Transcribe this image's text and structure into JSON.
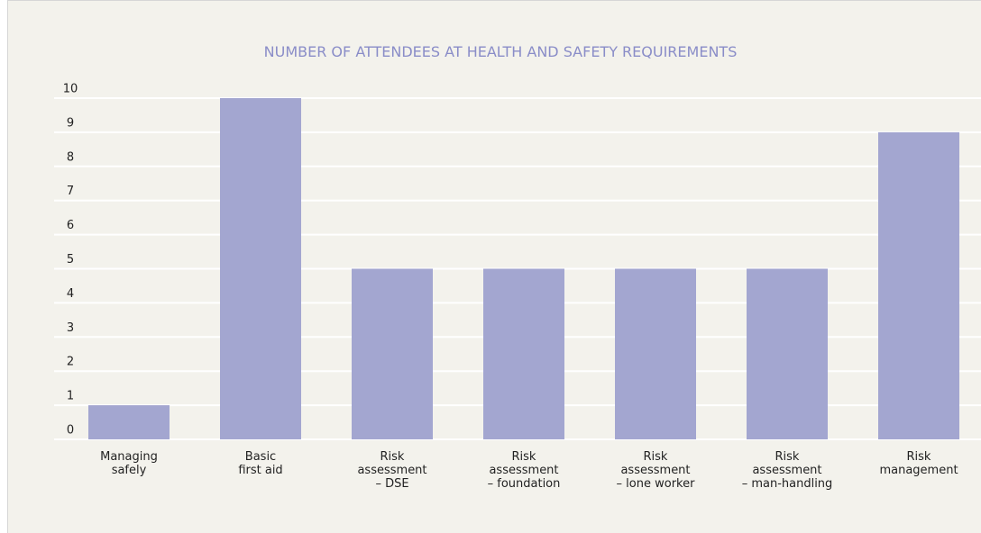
{
  "chart_data": {
    "type": "bar",
    "title": "NUMBER OF ATTENDEES AT HEALTH AND SAFETY REQUIREMENTS",
    "categories": [
      "Managing\nsafely",
      "Basic\nfirst aid",
      "Risk\nassessment\n– DSE",
      "Risk\nassessment\n– foundation",
      "Risk\nassessment\n– lone worker",
      "Risk\nassessment\n– man-handling",
      "Risk\nmanagement"
    ],
    "values": [
      1,
      10,
      5,
      5,
      5,
      5,
      9
    ],
    "color": "#a3a6d0",
    "ylim": [
      0,
      10
    ],
    "yticks": [
      0,
      1,
      2,
      3,
      4,
      5,
      6,
      7,
      8,
      9,
      10
    ],
    "grid": true
  }
}
